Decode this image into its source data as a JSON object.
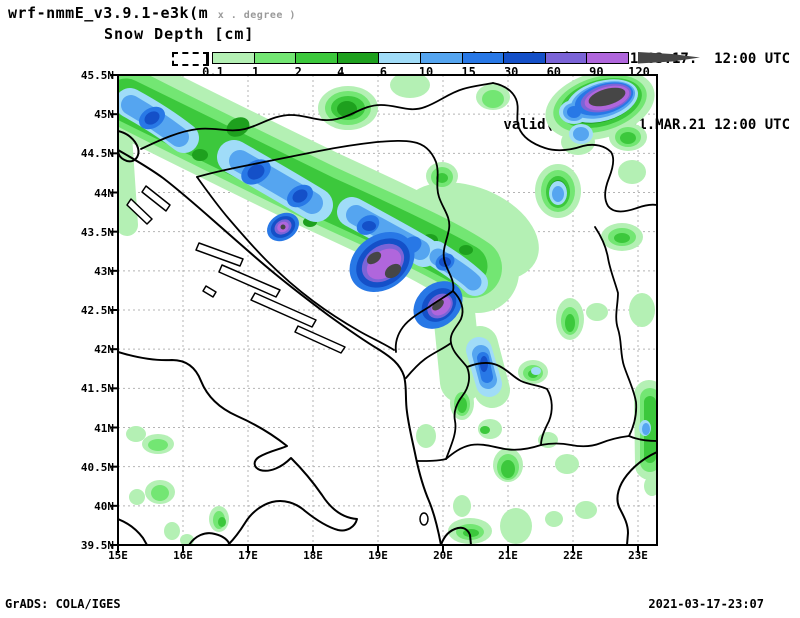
{
  "header": {
    "model_title": "wrf-nmmE_v3.9.1-e3k(m",
    "model_title_suffix": "x . degree )",
    "field_title": "Snow Depth [cm]",
    "init_line": "initialisation: 2021.03.17.  12:00 UTC",
    "valid_line": "valid(+96h): 2021.MAR.21 12:00 UTC"
  },
  "colorbar": {
    "labels": [
      "0.1",
      "1",
      "2",
      "4",
      "6",
      "10",
      "15",
      "30",
      "60",
      "90",
      "120"
    ],
    "segment_colors": [
      "#b4f0b4",
      "#73e673",
      "#3cc83c",
      "#1ea01e",
      "#a0dcf8",
      "#55a5f0",
      "#2878e6",
      "#1450c8",
      "#7b64d7",
      "#b066dc"
    ],
    "overflow_color": "#464646",
    "units": "cm"
  },
  "map": {
    "x_tick_labels": [
      "15E",
      "16E",
      "17E",
      "18E",
      "19E",
      "20E",
      "21E",
      "22E",
      "23E"
    ],
    "y_tick_labels": [
      "45.5N",
      "45N",
      "44.5N",
      "44N",
      "43.5N",
      "43N",
      "42.5N",
      "42N",
      "41.5N",
      "41N",
      "40.5N",
      "40N",
      "39.5N"
    ]
  },
  "footer": {
    "left_credit": "GrADS: COLA/IGES",
    "right_timestamp": "2021-03-17-23:07"
  }
}
